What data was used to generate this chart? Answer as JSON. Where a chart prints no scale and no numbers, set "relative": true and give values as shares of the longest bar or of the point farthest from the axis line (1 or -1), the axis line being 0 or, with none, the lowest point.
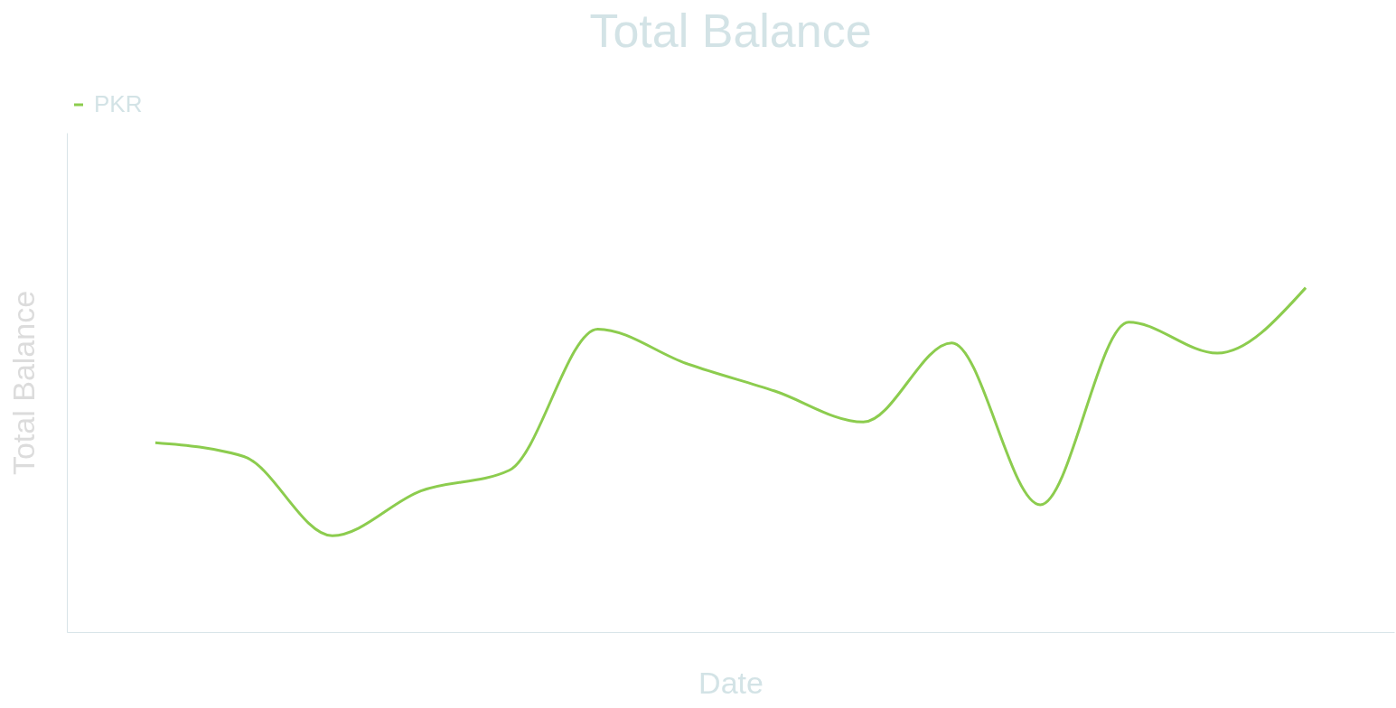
{
  "chart_data": {
    "type": "line",
    "title": "Total Balance",
    "xlabel": "Date",
    "ylabel": "Total Balance",
    "relative": true,
    "tick_labels": false,
    "grid": false,
    "legend": "top",
    "marker": "none",
    "line_style": "solid",
    "categories": [
      null,
      null,
      null,
      null,
      null,
      null,
      null,
      null,
      null,
      null,
      null,
      null,
      null,
      null
    ],
    "series": [
      {
        "name": "PKR",
        "color": "#8ccc4e",
        "values": [
          0.55,
          0.51,
          0.28,
          0.41,
          0.47,
          0.88,
          0.78,
          0.7,
          0.61,
          0.84,
          0.37,
          0.9,
          0.81,
          1.0
        ]
      }
    ]
  }
}
